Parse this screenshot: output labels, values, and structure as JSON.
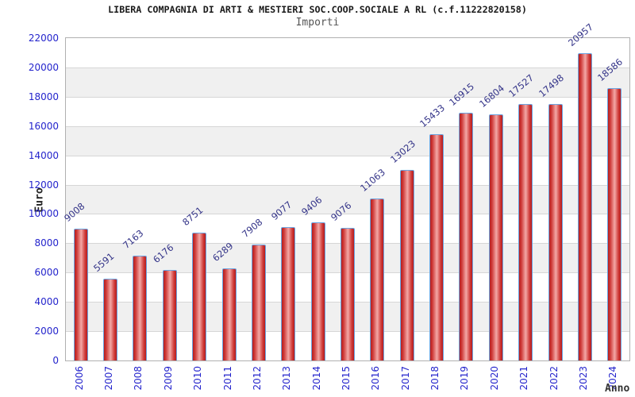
{
  "chart_data": {
    "type": "bar",
    "title": "LIBERA COMPAGNIA DI ARTI & MESTIERI SOC.COOP.SOCIALE A RL (c.f.11222820158)",
    "subtitle": "Importi",
    "xlabel": "Anno",
    "ylabel": "Euro",
    "categories": [
      "2006",
      "2007",
      "2008",
      "2009",
      "2010",
      "2011",
      "2012",
      "2013",
      "2014",
      "2015",
      "2016",
      "2017",
      "2018",
      "2019",
      "2020",
      "2021",
      "2022",
      "2023",
      "2024"
    ],
    "values": [
      9008,
      5591,
      7163,
      6176,
      8751,
      6289,
      7908,
      9077,
      9406,
      9076,
      11063,
      13023,
      15433,
      16915,
      16804,
      17527,
      17498,
      20957,
      18586
    ],
    "ylim": [
      0,
      22000
    ],
    "yticks": [
      0,
      2000,
      4000,
      6000,
      8000,
      10000,
      12000,
      14000,
      16000,
      18000,
      20000,
      22000
    ],
    "grid": true,
    "legend": "none",
    "bar_labels_rotated_deg": -40,
    "x_labels_rotated_deg": -90
  },
  "colors": {
    "tick_label_blue": "#2424cc",
    "value_label_navy": "#333388",
    "bar_edge_red": "#b51d1d",
    "bar_center_pink": "#f3a8a6",
    "bar_border_blue": "#6aa5e2",
    "band_gray": "#f0f0f0",
    "gridline_gray": "#d6d6d6",
    "plot_border_gray": "#b0b0b0",
    "title_color": "#1a1a1a",
    "subtitle_color": "#555555"
  }
}
